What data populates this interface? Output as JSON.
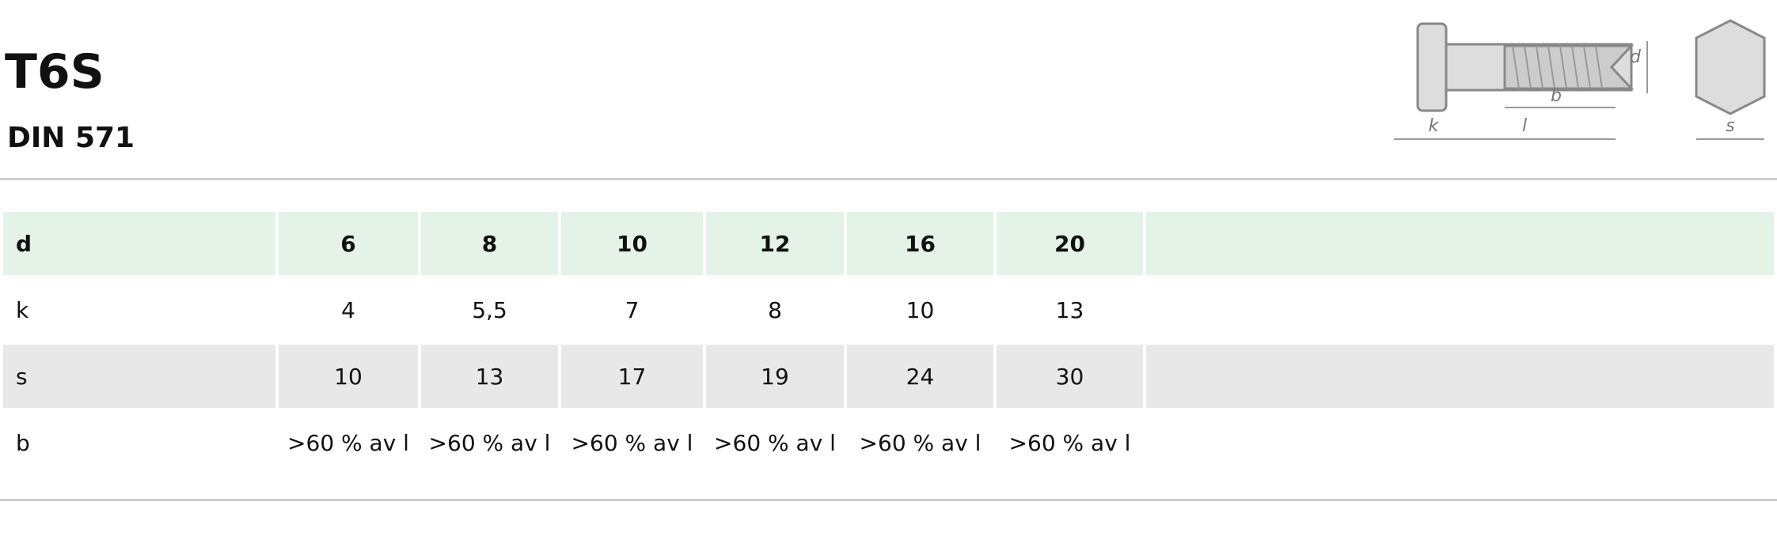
{
  "header": {
    "title": "T6S",
    "subtitle": "DIN 571"
  },
  "diagram": {
    "labels": {
      "d": "d",
      "b": "b",
      "k": "k",
      "l": "l",
      "s": "s"
    }
  },
  "table": {
    "rows": [
      [
        "d",
        "6",
        "8",
        "10",
        "12",
        "16",
        "20"
      ],
      [
        "k",
        "4",
        "5,5",
        "7",
        "8",
        "10",
        "13"
      ],
      [
        "s",
        "10",
        "13",
        "17",
        "19",
        "24",
        "30"
      ],
      [
        "b",
        ">60 % av l",
        ">60 % av l",
        ">60 % av l",
        ">60 % av l",
        ">60 % av l",
        ">60 % av l"
      ]
    ]
  }
}
